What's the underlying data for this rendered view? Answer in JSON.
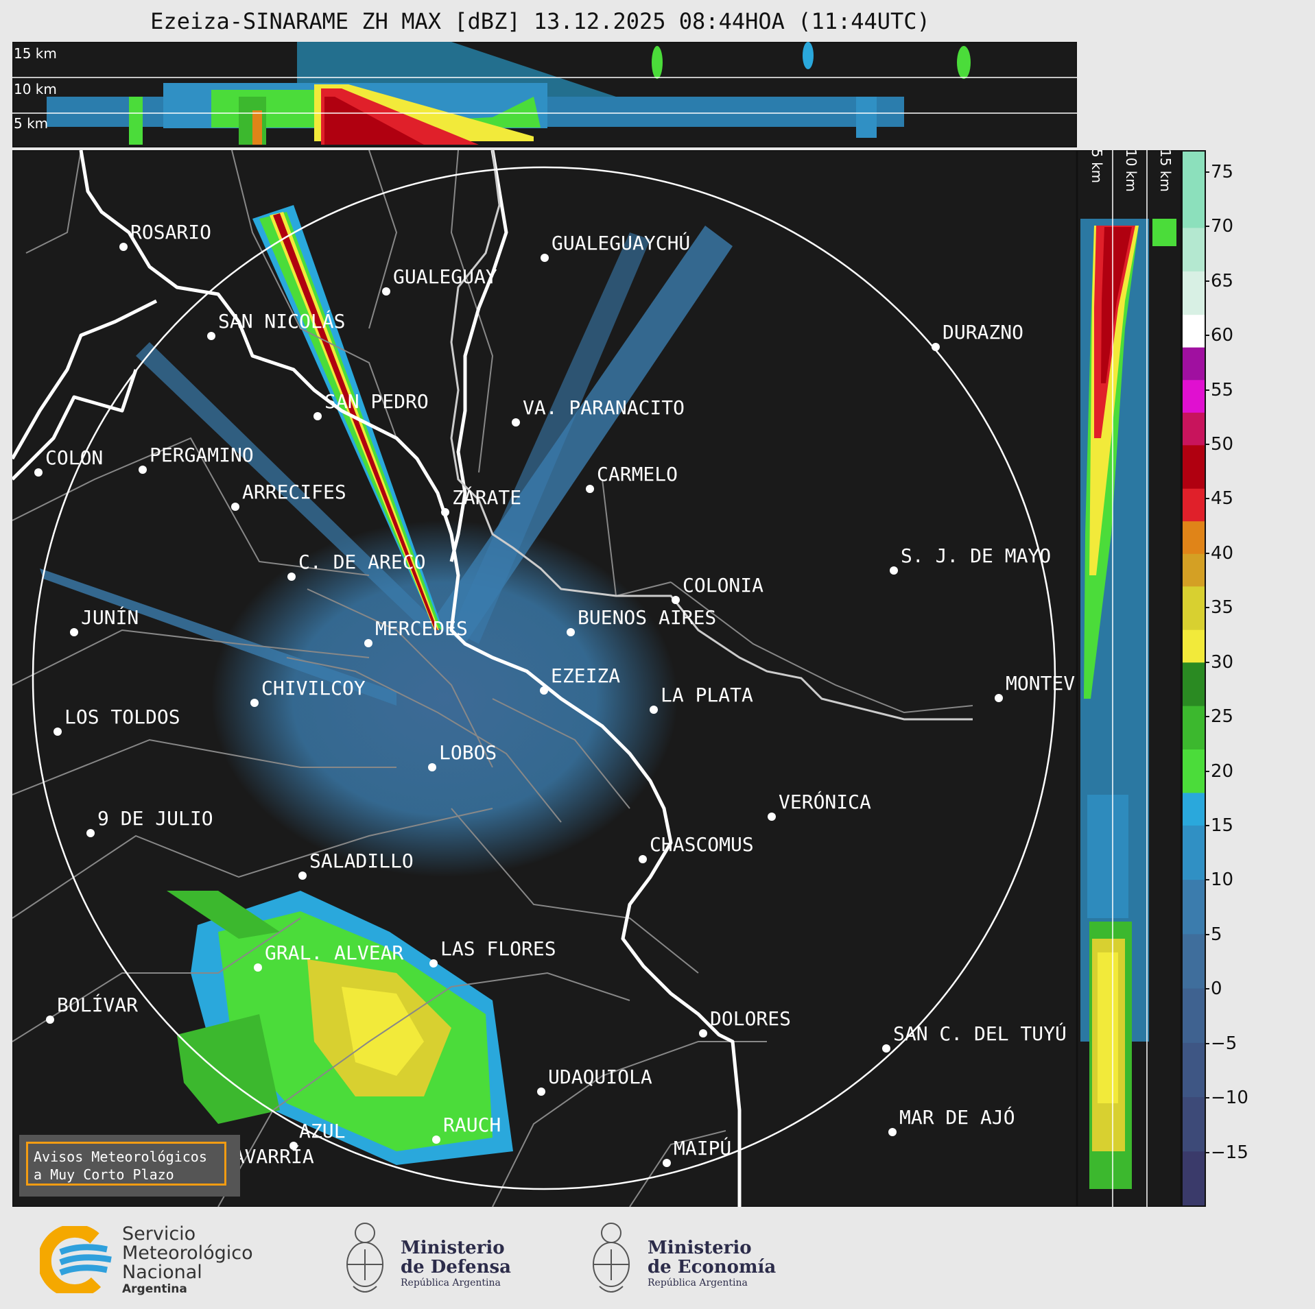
{
  "title": "Ezeiza-SINARAME ZH MAX [dBZ] 13.12.2025 08:44HOA (11:44UTC)",
  "height_labels": {
    "h15": "15 km",
    "h10": "10 km",
    "h5": "5 km"
  },
  "vertical_labels": {
    "v5": "5 km",
    "v10": "10 km",
    "v15": "15 km"
  },
  "cities": {
    "rosario": "ROSARIO",
    "gualeguaychu": "GUALEGUAYCHÚ",
    "gualeguay": "GUALEGUAY",
    "san_nicolas": "SAN NICOLÁS",
    "durazno": "DURAZNO",
    "san_pedro": "SAN PEDRO",
    "va_paranacito": "VA. PARANACITO",
    "colon": "COLON",
    "pergamino": "PERGAMINO",
    "carmelo": "CARMELO",
    "arrecifes": "ARRECIFES",
    "zarate": "ZÁRATE",
    "sj_de_mayo": "S. J. DE MAYO",
    "c_de_areco": "C. DE ARECO",
    "colonia": "COLONIA",
    "junin": "JUNÍN",
    "mercedes": "MERCEDES",
    "buenos_aires": "BUENOS AIRES",
    "montevideo": "MONTEV",
    "chivilcoy": "CHIVILCOY",
    "ezeiza": "EZEIZA",
    "la_plata": "LA PLATA",
    "los_toldos": "LOS TOLDOS",
    "lobos": "LOBOS",
    "veronica": "VERÓNICA",
    "nueve_de_julio": "9 DE JULIO",
    "chascomus": "CHASCOMUS",
    "saladillo": "SALADILLO",
    "gral_alvear": "GRAL. ALVEAR",
    "las_flores": "LAS FLORES",
    "bolivar": "BOLÍVAR",
    "dolores": "DOLORES",
    "san_c_del_tuyu": "SAN C. DEL TUYÚ",
    "udaquiola": "UDAQUIOLA",
    "azul": "AZUL",
    "rauch": "RAUCH",
    "mar_de_ajo": "MAR DE AJÓ",
    "olavarria": "OLAVARRÍA",
    "maipu": "MAIPÚ"
  },
  "colorbar": {
    "unit": "dBZ",
    "min": -20,
    "max": 77,
    "ticks": [
      {
        "value": 75,
        "label": "75"
      },
      {
        "value": 70,
        "label": "70"
      },
      {
        "value": 65,
        "label": "65"
      },
      {
        "value": 60,
        "label": "60"
      },
      {
        "value": 55,
        "label": "55"
      },
      {
        "value": 50,
        "label": "50"
      },
      {
        "value": 45,
        "label": "45"
      },
      {
        "value": 40,
        "label": "40"
      },
      {
        "value": 35,
        "label": "35"
      },
      {
        "value": 30,
        "label": "30"
      },
      {
        "value": 25,
        "label": "25"
      },
      {
        "value": 20,
        "label": "20"
      },
      {
        "value": 15,
        "label": "15"
      },
      {
        "value": 10,
        "label": "10"
      },
      {
        "value": 5,
        "label": "5"
      },
      {
        "value": 0,
        "label": "0"
      },
      {
        "value": -5,
        "label": "−5"
      },
      {
        "value": -10,
        "label": "−10"
      },
      {
        "value": -15,
        "label": "−15"
      }
    ],
    "bands": [
      {
        "from": -20,
        "to": -15,
        "color": "#3a3a6a"
      },
      {
        "from": -15,
        "to": -10,
        "color": "#3d4a78"
      },
      {
        "from": -10,
        "to": -5,
        "color": "#3e5684"
      },
      {
        "from": -5,
        "to": 0,
        "color": "#3f6290"
      },
      {
        "from": 0,
        "to": 5,
        "color": "#3f6e9c"
      },
      {
        "from": 5,
        "to": 10,
        "color": "#3b7cad"
      },
      {
        "from": 10,
        "to": 15,
        "color": "#3090c4"
      },
      {
        "from": 15,
        "to": 18,
        "color": "#2aa8dc"
      },
      {
        "from": 18,
        "to": 22,
        "color": "#4bdc3a"
      },
      {
        "from": 22,
        "to": 26,
        "color": "#3cb82e"
      },
      {
        "from": 26,
        "to": 30,
        "color": "#2a8a22"
      },
      {
        "from": 30,
        "to": 33,
        "color": "#f2ea3a"
      },
      {
        "from": 33,
        "to": 37,
        "color": "#d8d030"
      },
      {
        "from": 37,
        "to": 40,
        "color": "#d4a024"
      },
      {
        "from": 40,
        "to": 43,
        "color": "#e08418"
      },
      {
        "from": 43,
        "to": 46,
        "color": "#e0202a"
      },
      {
        "from": 46,
        "to": 50,
        "color": "#b00010"
      },
      {
        "from": 50,
        "to": 53,
        "color": "#c8145c"
      },
      {
        "from": 53,
        "to": 56,
        "color": "#e010d0"
      },
      {
        "from": 56,
        "to": 59,
        "color": "#a010a0"
      },
      {
        "from": 59,
        "to": 62,
        "color": "#ffffff"
      },
      {
        "from": 62,
        "to": 66,
        "color": "#d8f0e4"
      },
      {
        "from": 66,
        "to": 70,
        "color": "#b4e8d0"
      },
      {
        "from": 70,
        "to": 77,
        "color": "#8ce0bc"
      }
    ]
  },
  "aviso": {
    "line1": "Avisos Meteorológicos",
    "line2": "a Muy Corto Plazo"
  },
  "logos": {
    "smn": {
      "line1": "Servicio",
      "line2": "Meteorológico",
      "line3": "Nacional",
      "line4": "Argentina"
    },
    "defensa": {
      "line1": "Ministerio",
      "line2": "de Defensa",
      "line3": "República Argentina"
    },
    "economia": {
      "line1": "Ministerio",
      "line2": "de Economía",
      "line3": "República Argentina"
    }
  },
  "colors": {
    "background": "#1a1a1a",
    "page": "#e8e8e8",
    "accent": "#f39c12"
  }
}
